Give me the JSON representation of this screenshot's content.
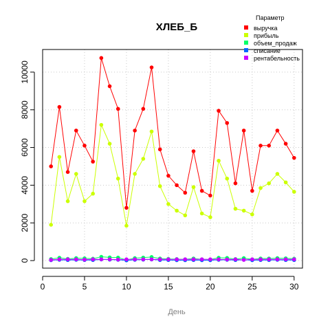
{
  "chart_data": {
    "type": "line",
    "title": "ХЛЕБ_Б",
    "xlabel": "День",
    "ylabel": "",
    "xlim": [
      0,
      31
    ],
    "ylim": [
      -400,
      11200
    ],
    "x_ticks": [
      0,
      5,
      10,
      15,
      20,
      25,
      30
    ],
    "y_ticks": [
      0,
      2000,
      4000,
      6000,
      8000,
      10000
    ],
    "grid": true,
    "legend_title": "Параметр",
    "legend_position": "top-right",
    "x": [
      1,
      2,
      3,
      4,
      5,
      6,
      7,
      8,
      9,
      10,
      11,
      12,
      13,
      14,
      15,
      16,
      17,
      18,
      19,
      20,
      21,
      22,
      23,
      24,
      25,
      26,
      27,
      28,
      29,
      30
    ],
    "series": [
      {
        "name": "выручка",
        "color": "#ff0000",
        "values": [
          5000,
          8150,
          4700,
          6900,
          6100,
          5250,
          10750,
          9250,
          8050,
          2800,
          6900,
          8050,
          10250,
          5900,
          4500,
          4000,
          3600,
          5800,
          3700,
          3450,
          7950,
          7300,
          4100,
          6900,
          3700,
          6100,
          6100,
          6900,
          6200,
          5450
        ]
      },
      {
        "name": "прибыль",
        "color": "#ccff00",
        "values": [
          1900,
          5500,
          3150,
          4600,
          3150,
          3550,
          7200,
          6200,
          4350,
          1850,
          4600,
          5400,
          6850,
          3950,
          3000,
          2650,
          2400,
          3900,
          2500,
          2300,
          5300,
          4350,
          2750,
          2650,
          2450,
          3850,
          4100,
          4600,
          4150,
          3650
        ]
      },
      {
        "name": "объем_продаж",
        "color": "#00ff66",
        "values": [
          80,
          150,
          90,
          130,
          120,
          100,
          200,
          170,
          160,
          40,
          130,
          160,
          190,
          110,
          90,
          80,
          70,
          110,
          70,
          60,
          150,
          140,
          80,
          130,
          70,
          110,
          110,
          130,
          120,
          100
        ]
      },
      {
        "name": "списание",
        "color": "#0066ff",
        "values": [
          20,
          40,
          30,
          40,
          30,
          30,
          60,
          50,
          40,
          10,
          40,
          50,
          60,
          30,
          30,
          20,
          20,
          30,
          20,
          20,
          40,
          40,
          30,
          40,
          20,
          30,
          30,
          40,
          30,
          30
        ]
      },
      {
        "name": "рентабельность",
        "color": "#cc00ff",
        "values": [
          38,
          67,
          67,
          67,
          52,
          68,
          67,
          67,
          54,
          66,
          67,
          67,
          67,
          67,
          67,
          66,
          67,
          67,
          68,
          67,
          67,
          60,
          67,
          38,
          66,
          63,
          67,
          67,
          67,
          67
        ]
      }
    ]
  }
}
